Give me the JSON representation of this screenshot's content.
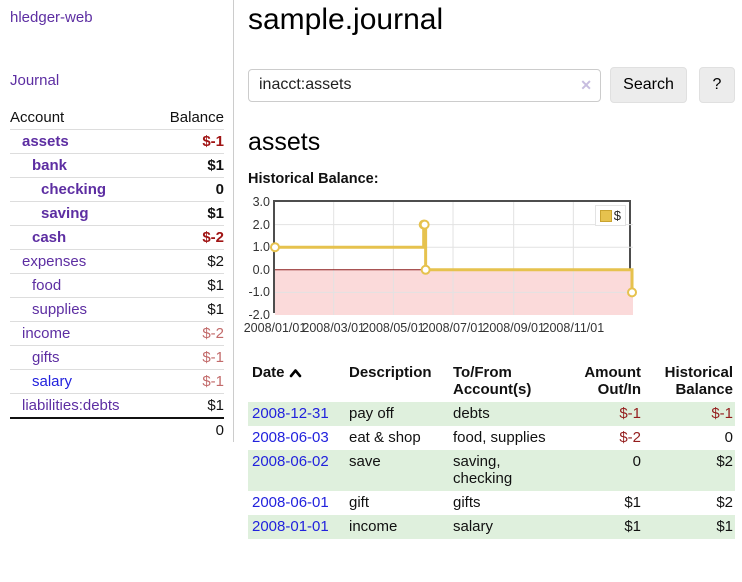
{
  "sidebar": {
    "brand": "hledger-web",
    "journal_link": "Journal",
    "accounts": {
      "header_account": "Account",
      "header_balance": "Balance",
      "rows": [
        {
          "account": "assets",
          "balance": "$-1"
        },
        {
          "account": "bank",
          "balance": "$1"
        },
        {
          "account": "checking",
          "balance": "0"
        },
        {
          "account": "saving",
          "balance": "$1"
        },
        {
          "account": "cash",
          "balance": "$-2"
        },
        {
          "account": "expenses",
          "balance": "$2"
        },
        {
          "account": "food",
          "balance": "$1"
        },
        {
          "account": "supplies",
          "balance": "$1"
        },
        {
          "account": "income",
          "balance": "$-2"
        },
        {
          "account": "gifts",
          "balance": "$-1"
        },
        {
          "account": "salary",
          "balance": "$-1"
        },
        {
          "account": "liabilities:debts",
          "balance": "$1"
        }
      ],
      "total": "0"
    }
  },
  "main": {
    "title": "sample.journal",
    "search": {
      "value": "inacct:assets",
      "clear_icon": "✕",
      "button_label": "Search",
      "help_label": "?"
    },
    "account_title": "assets",
    "chart_label": "Historical Balance:"
  },
  "chart_data": {
    "type": "line",
    "step": true,
    "title": "Historical Balance:",
    "series": [
      {
        "name": "$",
        "color": "#e6c24e",
        "points": [
          [
            "2008-01-01",
            1
          ],
          [
            "2008-06-01",
            2
          ],
          [
            "2008-06-02",
            2
          ],
          [
            "2008-06-03",
            0
          ],
          [
            "2008-12-31",
            -1
          ]
        ]
      }
    ],
    "x_range": [
      "2008-01-01",
      "2009-01-01"
    ],
    "x_ticks": [
      "2008/01/01",
      "2008/03/01",
      "2008/05/01",
      "2008/07/01",
      "2008/09/01",
      "2008/11/01"
    ],
    "y_ticks": [
      "3.0",
      "2.0",
      "1.0",
      "0.0",
      "-1.0",
      "-2.0"
    ],
    "ylim": [
      -2,
      3
    ],
    "grid": true,
    "grid_color": "#e2e2e2",
    "negative_region_color": "#fbdada",
    "zero_line_color": "#8b1a1a",
    "legend": {
      "label": "$",
      "position": "top-right"
    }
  },
  "register": {
    "headers": {
      "date": "Date",
      "description": "Description",
      "account": "To/From\nAccount(s)",
      "amount": "Amount\nOut/In",
      "balance": "Historical\nBalance"
    },
    "rows": [
      {
        "date": "2008-12-31",
        "description": "pay off",
        "account": "debts",
        "amount": "$-1",
        "balance": "$-1"
      },
      {
        "date": "2008-06-03",
        "description": "eat & shop",
        "account": "food, supplies",
        "amount": "$-2",
        "balance": "0"
      },
      {
        "date": "2008-06-02",
        "description": "save",
        "account": "saving,\nchecking",
        "amount": "0",
        "balance": "$2"
      },
      {
        "date": "2008-06-01",
        "description": "gift",
        "account": "gifts",
        "amount": "$1",
        "balance": "$2"
      },
      {
        "date": "2008-01-01",
        "description": "income",
        "account": "salary",
        "amount": "$1",
        "balance": "$1"
      }
    ]
  }
}
